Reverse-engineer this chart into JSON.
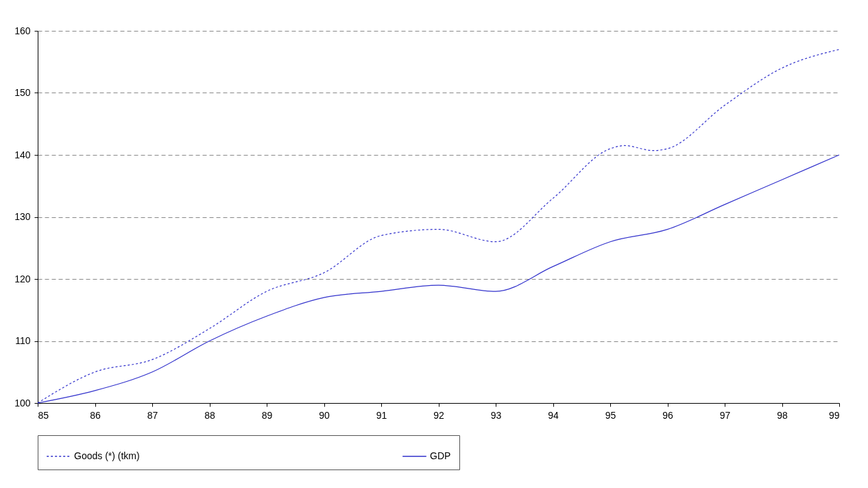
{
  "chart_data": {
    "type": "line",
    "x": [
      85,
      86,
      87,
      88,
      89,
      90,
      91,
      92,
      93,
      94,
      95,
      96,
      97,
      98,
      99
    ],
    "xlim": [
      85,
      99
    ],
    "xticks": [
      85,
      86,
      87,
      88,
      89,
      90,
      91,
      92,
      93,
      94,
      95,
      96,
      97,
      98,
      99
    ],
    "ylim": [
      100,
      160
    ],
    "yticks": [
      100,
      110,
      120,
      130,
      140,
      150,
      160
    ],
    "grid": "y",
    "legend": "bottom",
    "marker": "none",
    "series": [
      {
        "name": "Goods (*) (tkm)",
        "color": "#3333cc",
        "line_style": "dotted",
        "x": [
          85,
          86,
          87,
          88,
          89,
          90,
          91,
          92,
          93,
          94,
          95,
          95.25,
          95.75,
          96,
          97,
          98,
          99
        ],
        "values": [
          100,
          105,
          107,
          112,
          118,
          121,
          127,
          128,
          126,
          133,
          141,
          141.5,
          140.7,
          141,
          148,
          154,
          157
        ]
      },
      {
        "name": "GDP",
        "color": "#3333cc",
        "line_style": "solid",
        "values": [
          100,
          102,
          105,
          110,
          114,
          117,
          118,
          119,
          118,
          122,
          126,
          128,
          132,
          136,
          140
        ]
      }
    ]
  }
}
